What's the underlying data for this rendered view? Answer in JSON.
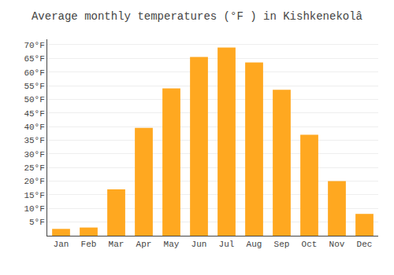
{
  "chart_data": {
    "type": "bar",
    "title": "Average monthly temperatures (°F ) in Kishkenekolâ",
    "categories": [
      "Jan",
      "Feb",
      "Mar",
      "Apr",
      "May",
      "Jun",
      "Jul",
      "Aug",
      "Sep",
      "Oct",
      "Nov",
      "Dec"
    ],
    "values": [
      2.5,
      3.0,
      17.0,
      39.5,
      54.0,
      65.5,
      69.0,
      63.5,
      53.5,
      37.0,
      20.0,
      8.0
    ],
    "color": "#FFA820",
    "ylim": [
      0,
      72
    ],
    "yticks": [
      {
        "value": 5,
        "label": "5°F"
      },
      {
        "value": 10,
        "label": "10°F"
      },
      {
        "value": 15,
        "label": "15°F"
      },
      {
        "value": 20,
        "label": "20°F"
      },
      {
        "value": 25,
        "label": "25°F"
      },
      {
        "value": 30,
        "label": "30°F"
      },
      {
        "value": 35,
        "label": "35°F"
      },
      {
        "value": 40,
        "label": "40°F"
      },
      {
        "value": 45,
        "label": "45°F"
      },
      {
        "value": 50,
        "label": "50°F"
      },
      {
        "value": 55,
        "label": "55°F"
      },
      {
        "value": 60,
        "label": "60°F"
      },
      {
        "value": 65,
        "label": "65°F"
      },
      {
        "value": 70,
        "label": "70°F"
      }
    ],
    "grid": true
  }
}
